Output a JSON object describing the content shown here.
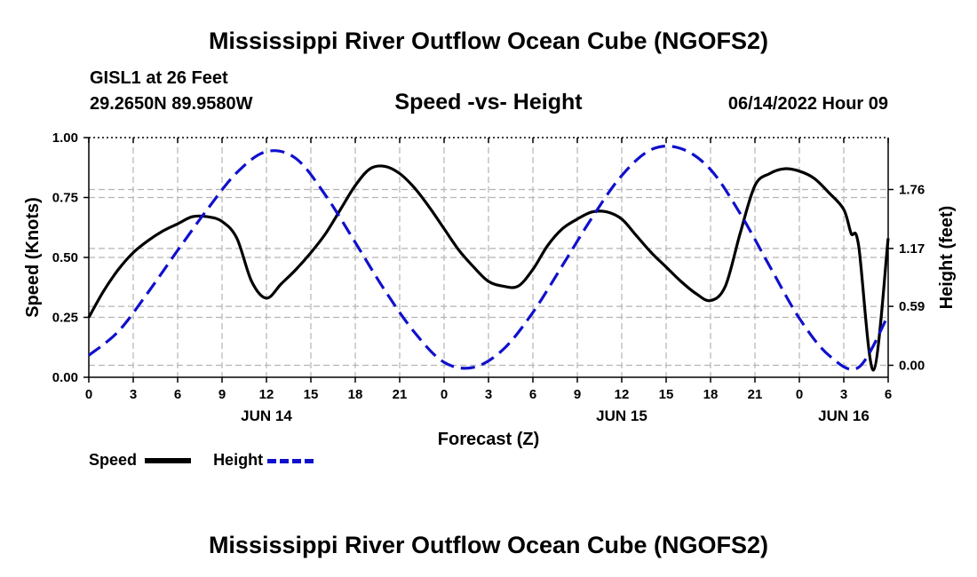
{
  "page": {
    "title": "Mississippi River Outflow Ocean Cube (NGOFS2)",
    "station": "GISL1 at 26 Feet",
    "location": "29.2650N  89.9580W",
    "subtitle": "Speed -vs- Height",
    "timestamp": "06/14/2022 Hour 09",
    "footer_title": "Mississippi River Outflow Ocean Cube (NGOFS2)"
  },
  "legend": {
    "speed_label": "Speed",
    "height_label": "Height"
  },
  "colors": {
    "speed": "#000000",
    "height": "#1010cc",
    "grid": "#b4b4b4"
  },
  "chart_data": {
    "type": "line",
    "title": "Speed -vs- Height",
    "xlabel": "Forecast (Z)",
    "ylabel": "Speed (Knots)",
    "y2label": "Height (feet)",
    "xlim": [
      0,
      54
    ],
    "ylim": [
      0,
      1.0
    ],
    "y2lim": [
      -0.12,
      2.28
    ],
    "x_ticks": [
      0,
      3,
      6,
      9,
      12,
      15,
      18,
      21,
      24,
      27,
      30,
      33,
      36,
      39,
      42,
      45,
      48,
      51,
      54
    ],
    "x_tick_labels": [
      "0",
      "3",
      "6",
      "9",
      "12",
      "15",
      "18",
      "21",
      "0",
      "3",
      "6",
      "9",
      "12",
      "15",
      "18",
      "21",
      "0",
      "3",
      "6"
    ],
    "date_labels": [
      {
        "x": 12,
        "label": "JUN 14"
      },
      {
        "x": 36,
        "label": "JUN 15"
      },
      {
        "x": 51,
        "label": "JUN 16"
      }
    ],
    "y_ticks": [
      0.0,
      0.25,
      0.5,
      0.75,
      1.0
    ],
    "y_tick_labels": [
      "0.00",
      "0.25",
      "0.50",
      "0.75",
      "1.00"
    ],
    "y2_ticks": [
      0.0,
      0.59,
      1.17,
      1.76
    ],
    "y2_tick_labels": [
      "0.00",
      "0.59",
      "1.17",
      "1.76"
    ],
    "series": [
      {
        "name": "Speed",
        "axis": "left",
        "style": "solid",
        "x": [
          0,
          1,
          2,
          3,
          4,
          5,
          6,
          7,
          8,
          9,
          10,
          11,
          12,
          13,
          14,
          15,
          16,
          17,
          18,
          19,
          20,
          21,
          22,
          23,
          24,
          25,
          26,
          27,
          28,
          29,
          30,
          31,
          32,
          33,
          34,
          35,
          36,
          37,
          38,
          39,
          40,
          41,
          42,
          43,
          44,
          45,
          46,
          47,
          48,
          49,
          50,
          51,
          51.5,
          52,
          53,
          54
        ],
        "values": [
          0.25,
          0.36,
          0.45,
          0.52,
          0.57,
          0.61,
          0.64,
          0.67,
          0.67,
          0.65,
          0.58,
          0.4,
          0.33,
          0.39,
          0.45,
          0.52,
          0.6,
          0.7,
          0.8,
          0.87,
          0.88,
          0.85,
          0.79,
          0.71,
          0.62,
          0.53,
          0.46,
          0.4,
          0.38,
          0.38,
          0.45,
          0.55,
          0.62,
          0.66,
          0.69,
          0.69,
          0.66,
          0.59,
          0.52,
          0.46,
          0.4,
          0.35,
          0.32,
          0.38,
          0.6,
          0.8,
          0.85,
          0.87,
          0.86,
          0.83,
          0.77,
          0.7,
          0.6,
          0.55,
          0.03,
          0.58
        ]
      },
      {
        "name": "Height",
        "axis": "right",
        "style": "dashed",
        "x": [
          0,
          2,
          4,
          6,
          8,
          10,
          12,
          14,
          16,
          18,
          20,
          22,
          24,
          26,
          28,
          30,
          32,
          34,
          36,
          38,
          40,
          42,
          44,
          46,
          48,
          50,
          52,
          54
        ],
        "values": [
          0.1,
          0.34,
          0.73,
          1.15,
          1.56,
          1.93,
          2.14,
          2.07,
          1.7,
          1.23,
          0.75,
          0.33,
          0.03,
          -0.02,
          0.16,
          0.53,
          1.0,
          1.48,
          1.9,
          2.16,
          2.17,
          1.96,
          1.52,
          0.99,
          0.47,
          0.1,
          -0.02,
          0.5
        ]
      }
    ]
  }
}
